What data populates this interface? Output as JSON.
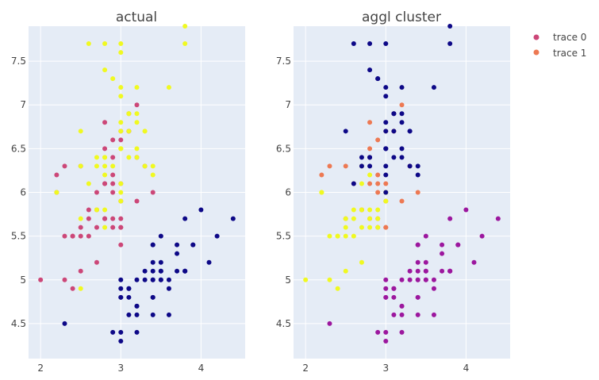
{
  "chart_data": [
    {
      "type": "scatter",
      "title": "actual",
      "xlabel": "",
      "ylabel": "",
      "xlim": [
        1.85,
        4.55
      ],
      "ylim": [
        4.1,
        7.9
      ],
      "xticks": [
        "2",
        "3",
        "4"
      ],
      "yticks": [
        "4.5",
        "5",
        "5.5",
        "6",
        "6.5",
        "7",
        "7.5"
      ],
      "colors": {
        "navy": "#0d0887",
        "magenta": "#cc4778",
        "yellow": "#f0f921"
      },
      "series": [
        {
          "name": "navy",
          "x": [
            3.5,
            3.0,
            3.2,
            3.1,
            3.6,
            3.9,
            3.4,
            3.4,
            2.9,
            3.1,
            3.7,
            3.4,
            3.0,
            3.0,
            4.0,
            4.4,
            3.9,
            3.5,
            3.8,
            3.8,
            3.4,
            3.7,
            3.6,
            3.3,
            3.4,
            3.0,
            3.4,
            3.5,
            3.4,
            3.2,
            3.1,
            3.4,
            4.1,
            4.2,
            3.1,
            3.2,
            3.5,
            3.6,
            3.0,
            3.4,
            3.5,
            2.3,
            3.2,
            3.5,
            3.8,
            3.0,
            3.8,
            3.2,
            3.7,
            3.3
          ],
          "y": [
            5.1,
            4.9,
            4.7,
            4.6,
            5.0,
            5.4,
            4.6,
            5.0,
            4.4,
            4.9,
            5.4,
            4.8,
            4.8,
            4.3,
            5.8,
            5.7,
            5.4,
            5.1,
            5.7,
            5.1,
            5.4,
            5.1,
            4.6,
            5.1,
            4.8,
            5.0,
            5.0,
            5.2,
            5.2,
            4.7,
            4.8,
            5.4,
            5.2,
            5.5,
            4.9,
            5.0,
            5.5,
            4.9,
            4.4,
            5.1,
            5.0,
            4.5,
            4.4,
            5.0,
            5.1,
            4.8,
            5.1,
            4.6,
            5.3,
            5.0
          ]
        },
        {
          "name": "magenta",
          "x": [
            3.2,
            3.2,
            3.1,
            2.3,
            2.8,
            2.8,
            3.3,
            2.4,
            2.9,
            2.7,
            2.0,
            3.0,
            2.2,
            2.9,
            2.9,
            3.1,
            3.0,
            2.7,
            2.2,
            2.5,
            3.2,
            2.8,
            2.5,
            2.8,
            2.9,
            3.0,
            2.8,
            3.0,
            2.9,
            2.6,
            2.4,
            2.4,
            2.7,
            2.7,
            3.0,
            3.4,
            3.1,
            2.3,
            3.0,
            2.5,
            2.6,
            3.0,
            2.6,
            2.3,
            2.7,
            3.0,
            2.9,
            2.9,
            2.5,
            2.8
          ],
          "y": [
            7.0,
            6.4,
            6.9,
            5.5,
            6.5,
            5.7,
            6.3,
            4.9,
            6.6,
            5.2,
            5.0,
            5.9,
            6.0,
            6.1,
            5.6,
            6.7,
            5.6,
            5.8,
            6.2,
            5.6,
            5.9,
            6.1,
            6.3,
            6.1,
            6.4,
            6.6,
            6.8,
            6.7,
            6.0,
            5.7,
            5.5,
            5.5,
            5.8,
            6.0,
            5.4,
            6.0,
            6.7,
            6.3,
            5.6,
            5.5,
            5.5,
            6.1,
            5.8,
            5.0,
            5.6,
            5.7,
            5.7,
            6.2,
            5.1,
            5.7
          ]
        },
        {
          "name": "yellow",
          "x": [
            3.3,
            2.7,
            3.0,
            2.9,
            3.0,
            3.0,
            2.5,
            2.9,
            2.5,
            3.6,
            3.2,
            2.7,
            3.0,
            2.5,
            2.8,
            3.2,
            3.0,
            3.8,
            2.6,
            2.2,
            3.2,
            2.8,
            2.8,
            2.7,
            3.3,
            3.2,
            2.8,
            3.0,
            2.8,
            3.0,
            2.8,
            3.8,
            2.8,
            2.8,
            2.6,
            3.0,
            3.4,
            3.1,
            3.0,
            3.1,
            3.1,
            3.1,
            2.7,
            3.2,
            3.3,
            3.0,
            2.5,
            3.0,
            3.4,
            3.0
          ],
          "y": [
            6.3,
            5.8,
            7.1,
            6.3,
            6.5,
            7.6,
            4.9,
            7.3,
            6.7,
            7.2,
            6.5,
            6.4,
            6.8,
            5.7,
            5.8,
            6.4,
            6.5,
            7.7,
            7.7,
            6.0,
            6.9,
            5.6,
            7.7,
            6.3,
            6.7,
            7.2,
            6.2,
            6.1,
            6.4,
            7.2,
            7.4,
            7.9,
            6.4,
            6.3,
            6.1,
            7.7,
            6.3,
            6.4,
            6.0,
            6.9,
            6.7,
            6.9,
            5.8,
            6.8,
            6.7,
            6.7,
            6.3,
            6.5,
            6.2,
            5.9
          ]
        }
      ]
    },
    {
      "type": "scatter",
      "title": "aggl cluster",
      "xlabel": "",
      "ylabel": "",
      "xlim": [
        1.85,
        4.55
      ],
      "ylim": [
        4.1,
        7.9
      ],
      "xticks": [
        "2",
        "3",
        "4"
      ],
      "yticks": [
        "4.5",
        "5",
        "5.5",
        "6",
        "6.5",
        "7",
        "7.5"
      ],
      "colors": {
        "purple": "#9c179e",
        "orange": "#ed7953",
        "yellow": "#f0f921",
        "navy": "#0d0887"
      },
      "series": [
        {
          "name": "purple",
          "x": [
            3.5,
            3.0,
            3.2,
            3.1,
            3.6,
            3.9,
            3.4,
            3.4,
            2.9,
            3.1,
            3.7,
            3.4,
            3.0,
            3.0,
            4.0,
            4.4,
            3.9,
            3.5,
            3.8,
            3.8,
            3.4,
            3.7,
            3.6,
            3.3,
            3.4,
            3.0,
            3.4,
            3.5,
            3.4,
            3.2,
            3.1,
            3.4,
            4.1,
            4.2,
            3.1,
            3.2,
            3.5,
            3.6,
            3.0,
            3.4,
            3.5,
            2.3,
            3.2,
            3.5,
            3.8,
            3.0,
            3.8,
            3.2,
            3.7,
            3.3
          ],
          "y": [
            5.1,
            4.9,
            4.7,
            4.6,
            5.0,
            5.4,
            4.6,
            5.0,
            4.4,
            4.9,
            5.4,
            4.8,
            4.8,
            4.3,
            5.8,
            5.7,
            5.4,
            5.1,
            5.7,
            5.1,
            5.4,
            5.1,
            4.6,
            5.1,
            4.8,
            5.0,
            5.0,
            5.2,
            5.2,
            4.7,
            4.8,
            5.4,
            5.2,
            5.5,
            4.9,
            5.0,
            5.5,
            4.9,
            4.4,
            5.1,
            5.0,
            4.5,
            4.4,
            5.0,
            5.1,
            4.8,
            5.1,
            4.6,
            5.3,
            5.0
          ]
        },
        {
          "name": "orange",
          "x": [
            3.2,
            3.1,
            2.8,
            3.3,
            2.9,
            3.0,
            2.2,
            2.9,
            3.1,
            3.0,
            2.5,
            3.2,
            2.8,
            2.5,
            2.8,
            2.9,
            3.0,
            2.8,
            3.0,
            2.9,
            2.7,
            3.4,
            3.1,
            2.3,
            3.0,
            2.6,
            2.7,
            2.9,
            2.9,
            2.8
          ],
          "y": [
            7.0,
            6.9,
            6.5,
            6.3,
            6.6,
            5.9,
            6.2,
            6.1,
            6.7,
            5.6,
            6.3,
            5.9,
            6.1,
            5.7,
            6.4,
            6.2,
            6.1,
            6.8,
            6.7,
            6.0,
            5.8,
            6.0,
            6.7,
            6.3,
            5.6,
            6.1,
            5.8,
            5.7,
            5.6,
            5.7
          ]
        },
        {
          "name": "yellow",
          "x": [
            2.3,
            2.8,
            2.4,
            2.7,
            2.0,
            2.2,
            2.9,
            2.7,
            2.5,
            2.6,
            2.4,
            2.4,
            3.0,
            2.5,
            2.6,
            2.3,
            2.9,
            2.5,
            2.2,
            3.0,
            2.7,
            2.6,
            2.8,
            3.0,
            2.8,
            2.7,
            2.9,
            2.8,
            2.5,
            2.7
          ],
          "y": [
            5.5,
            5.7,
            4.9,
            5.2,
            5.0,
            6.0,
            5.6,
            5.6,
            5.6,
            5.7,
            5.5,
            5.5,
            6.0,
            5.7,
            5.5,
            5.0,
            5.7,
            5.1,
            6.0,
            5.9,
            6.3,
            5.8,
            5.6,
            6.0,
            6.2,
            6.1,
            5.8,
            5.8,
            5.5,
            5.8
          ]
        },
        {
          "name": "navy",
          "x": [
            3.3,
            3.0,
            3.0,
            2.9,
            3.0,
            2.5,
            2.9,
            3.6,
            3.2,
            2.7,
            3.0,
            3.2,
            3.0,
            3.8,
            2.6,
            3.2,
            2.8,
            2.7,
            3.3,
            3.2,
            3.0,
            2.8,
            3.0,
            2.8,
            3.8,
            2.8,
            2.8,
            2.6,
            3.0,
            3.4,
            3.1,
            3.0,
            3.1,
            3.1,
            3.2,
            3.3,
            3.0,
            3.0,
            3.4,
            3.1
          ],
          "y": [
            6.3,
            7.1,
            6.3,
            7.3,
            6.5,
            6.7,
            7.3,
            7.2,
            6.5,
            6.4,
            6.8,
            6.4,
            6.5,
            7.7,
            7.7,
            6.9,
            7.7,
            6.3,
            6.7,
            7.2,
            6.2,
            6.4,
            7.2,
            7.4,
            7.9,
            6.4,
            6.3,
            6.1,
            7.7,
            6.3,
            6.4,
            6.0,
            6.9,
            6.7,
            6.8,
            6.7,
            6.7,
            6.5,
            6.2,
            6.9
          ]
        }
      ]
    }
  ],
  "legend": {
    "items": [
      {
        "label": "trace 0",
        "color": "#cc4778"
      },
      {
        "label": "trace 1",
        "color": "#ed7953"
      }
    ]
  }
}
